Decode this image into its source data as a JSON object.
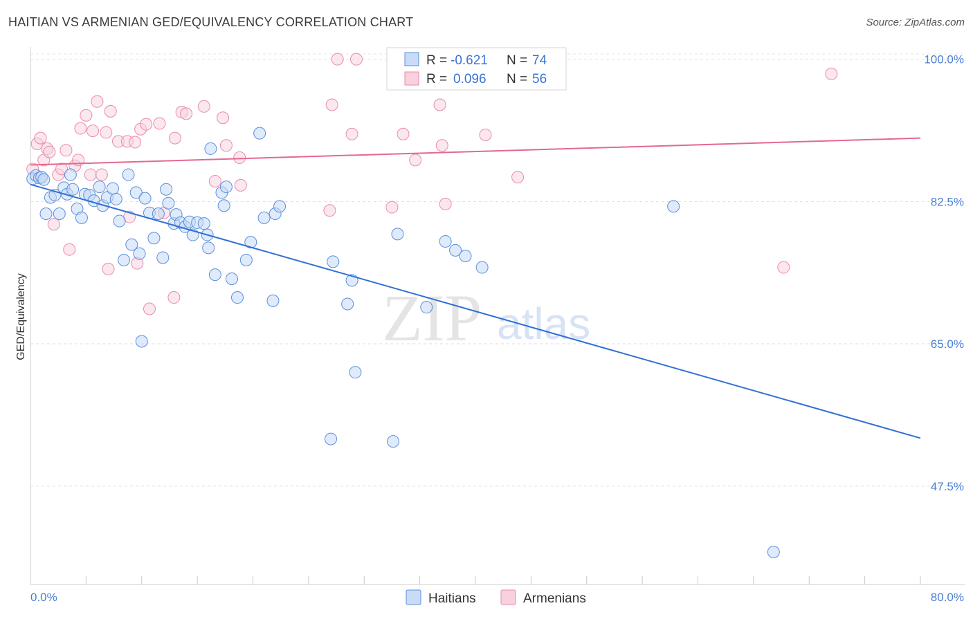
{
  "title": "HAITIAN VS ARMENIAN GED/EQUIVALENCY CORRELATION CHART",
  "source": "Source: ZipAtlas.com",
  "watermark": {
    "zip": "ZIP",
    "atlas": "atlas"
  },
  "chart_data": {
    "type": "scatter",
    "xlabel": "",
    "ylabel": "GED/Equivalency",
    "xlim": [
      0,
      80
    ],
    "ylim": [
      35.4,
      101.5
    ],
    "x_tick_labels": [
      "0.0%",
      "80.0%"
    ],
    "y_ticks": [
      47.5,
      65.0,
      82.5,
      100.0
    ],
    "y_tick_labels": [
      "47.5%",
      "65.0%",
      "82.5%",
      "100.0%"
    ],
    "grid": true,
    "colors": {
      "haitians": "#5b8fdc",
      "armenians": "#ea8aab",
      "haitians_line": "#2f6fd6",
      "armenians_line": "#e4688f"
    },
    "legend_top": [
      {
        "r_label": "R =",
        "r_value": "-0.621",
        "n_label": "N =",
        "n_value": "74"
      },
      {
        "r_label": "R =",
        "r_value": "0.096",
        "n_label": "N =",
        "n_value": "56"
      }
    ],
    "legend_bottom": [
      "Haitians",
      "Armenians"
    ],
    "series": [
      {
        "name": "Haitians",
        "trend": {
          "x": [
            0,
            80
          ],
          "y": [
            84.6,
            53.4
          ]
        },
        "points": [
          [
            0.2,
            85.3
          ],
          [
            0.5,
            85.7
          ],
          [
            0.8,
            85.4
          ],
          [
            1.0,
            85.5
          ],
          [
            1.2,
            85.2
          ],
          [
            1.4,
            81.0
          ],
          [
            1.8,
            83.0
          ],
          [
            2.2,
            83.3
          ],
          [
            2.6,
            81.0
          ],
          [
            3.0,
            84.2
          ],
          [
            3.3,
            83.4
          ],
          [
            3.6,
            85.8
          ],
          [
            3.8,
            84.0
          ],
          [
            4.2,
            81.6
          ],
          [
            4.6,
            80.5
          ],
          [
            4.9,
            83.4
          ],
          [
            5.3,
            83.3
          ],
          [
            5.7,
            82.6
          ],
          [
            6.2,
            84.3
          ],
          [
            6.5,
            82.0
          ],
          [
            6.9,
            83.0
          ],
          [
            7.4,
            84.1
          ],
          [
            7.7,
            82.8
          ],
          [
            8.0,
            80.1
          ],
          [
            8.4,
            75.3
          ],
          [
            8.8,
            85.8
          ],
          [
            9.1,
            77.2
          ],
          [
            9.5,
            83.6
          ],
          [
            9.8,
            76.1
          ],
          [
            10.0,
            65.3
          ],
          [
            10.3,
            82.9
          ],
          [
            10.7,
            81.1
          ],
          [
            11.1,
            78.0
          ],
          [
            11.5,
            81.0
          ],
          [
            11.9,
            75.6
          ],
          [
            12.2,
            84.0
          ],
          [
            12.4,
            82.3
          ],
          [
            12.9,
            79.8
          ],
          [
            13.1,
            80.9
          ],
          [
            13.5,
            79.9
          ],
          [
            13.9,
            79.4
          ],
          [
            14.3,
            80.0
          ],
          [
            14.6,
            78.4
          ],
          [
            15.0,
            79.9
          ],
          [
            15.6,
            79.8
          ],
          [
            15.9,
            78.4
          ],
          [
            16.0,
            76.8
          ],
          [
            16.2,
            89.0
          ],
          [
            16.6,
            73.5
          ],
          [
            17.2,
            83.6
          ],
          [
            17.4,
            82.0
          ],
          [
            17.6,
            84.3
          ],
          [
            18.1,
            73.0
          ],
          [
            18.6,
            70.7
          ],
          [
            19.4,
            75.3
          ],
          [
            19.8,
            77.5
          ],
          [
            20.6,
            90.9
          ],
          [
            21.0,
            80.5
          ],
          [
            21.8,
            70.3
          ],
          [
            22.0,
            81.0
          ],
          [
            22.4,
            81.9
          ],
          [
            27.0,
            53.3
          ],
          [
            27.2,
            75.1
          ],
          [
            28.5,
            69.9
          ],
          [
            28.9,
            72.8
          ],
          [
            29.2,
            61.5
          ],
          [
            32.6,
            53.0
          ],
          [
            33.0,
            78.5
          ],
          [
            35.6,
            69.5
          ],
          [
            37.3,
            77.6
          ],
          [
            38.2,
            76.5
          ],
          [
            39.1,
            75.8
          ],
          [
            40.6,
            74.4
          ],
          [
            57.8,
            81.9
          ],
          [
            66.8,
            39.4
          ]
        ]
      },
      {
        "name": "Armenians",
        "trend": {
          "x": [
            0,
            80
          ],
          "y": [
            87.0,
            90.3
          ]
        },
        "points": [
          [
            0.2,
            86.5
          ],
          [
            0.6,
            89.6
          ],
          [
            0.9,
            90.3
          ],
          [
            1.2,
            87.6
          ],
          [
            1.5,
            89.0
          ],
          [
            1.7,
            88.6
          ],
          [
            2.1,
            79.7
          ],
          [
            2.5,
            85.8
          ],
          [
            2.8,
            86.5
          ],
          [
            3.2,
            88.8
          ],
          [
            3.5,
            76.6
          ],
          [
            4.0,
            86.9
          ],
          [
            4.3,
            87.6
          ],
          [
            4.5,
            91.5
          ],
          [
            5.0,
            93.1
          ],
          [
            5.4,
            85.8
          ],
          [
            5.6,
            91.2
          ],
          [
            6.0,
            94.8
          ],
          [
            6.4,
            85.8
          ],
          [
            6.8,
            91.0
          ],
          [
            7.0,
            74.2
          ],
          [
            7.2,
            93.6
          ],
          [
            7.9,
            89.9
          ],
          [
            8.7,
            89.9
          ],
          [
            8.9,
            80.6
          ],
          [
            9.4,
            89.8
          ],
          [
            9.6,
            74.9
          ],
          [
            9.9,
            91.4
          ],
          [
            10.4,
            92.0
          ],
          [
            10.7,
            69.3
          ],
          [
            11.6,
            92.1
          ],
          [
            12.0,
            81.1
          ],
          [
            12.9,
            70.7
          ],
          [
            13.0,
            90.3
          ],
          [
            13.6,
            93.5
          ],
          [
            14.0,
            93.3
          ],
          [
            15.6,
            94.2
          ],
          [
            16.6,
            85.0
          ],
          [
            17.3,
            92.8
          ],
          [
            17.6,
            89.4
          ],
          [
            18.8,
            87.9
          ],
          [
            18.9,
            84.5
          ],
          [
            26.9,
            81.4
          ],
          [
            27.1,
            94.4
          ],
          [
            27.6,
            100.0
          ],
          [
            28.9,
            90.8
          ],
          [
            29.3,
            100.0
          ],
          [
            32.5,
            81.8
          ],
          [
            33.5,
            90.8
          ],
          [
            34.6,
            87.6
          ],
          [
            36.8,
            94.4
          ],
          [
            37.0,
            89.4
          ],
          [
            37.3,
            82.2
          ],
          [
            40.9,
            90.7
          ],
          [
            43.8,
            85.5
          ],
          [
            67.7,
            74.4
          ],
          [
            72.0,
            98.2
          ]
        ]
      }
    ]
  }
}
